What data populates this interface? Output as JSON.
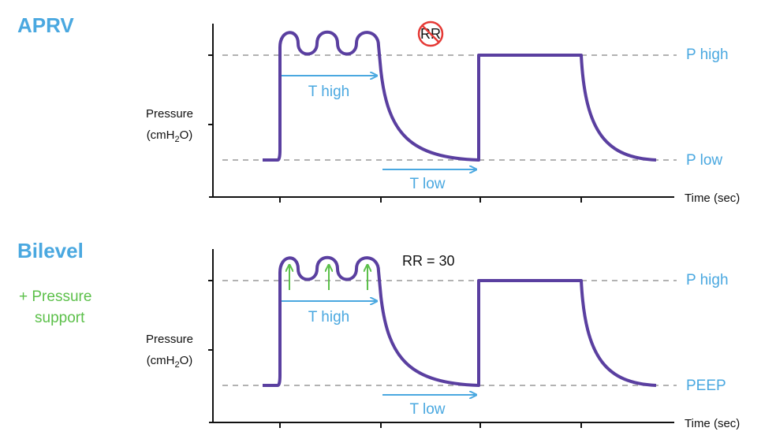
{
  "panels": [
    {
      "title": "APRV",
      "note": "RR",
      "y_label": "Pressure",
      "y_unit": [
        "(cmH",
        "2",
        "O)"
      ],
      "t_high": "T high",
      "t_low": "T low",
      "upper_level": "P high",
      "lower_level": "P low",
      "x_label": "Time (sec)"
    },
    {
      "title": "Bilevel",
      "subtitle": [
        "+ Pressure",
        "support"
      ],
      "note": "RR = 30",
      "y_label": "Pressure",
      "y_unit": [
        "(cmH",
        "2",
        "O)"
      ],
      "t_high": "T high",
      "t_low": "T low",
      "upper_level": "P high",
      "lower_level": "PEEP",
      "x_label": "Time (sec)"
    }
  ]
}
